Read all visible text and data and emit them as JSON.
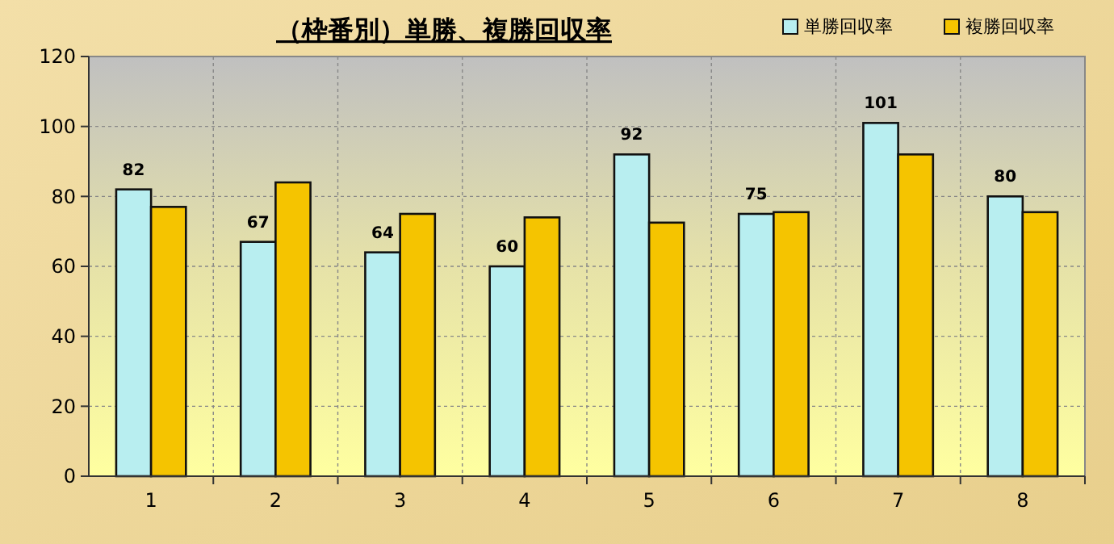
{
  "chart_data": {
    "type": "bar",
    "title": "（枠番別）単勝、複勝回収率",
    "categories": [
      "1",
      "2",
      "3",
      "4",
      "5",
      "6",
      "7",
      "8"
    ],
    "series": [
      {
        "name": "単勝回収率",
        "color": "#b8eef0",
        "values": [
          82,
          67,
          64,
          60,
          92,
          75,
          101,
          80
        ],
        "value_labels": [
          "82",
          "67",
          "64",
          "60",
          "92",
          "75",
          "101",
          "80"
        ]
      },
      {
        "name": "複勝回収率",
        "color": "#f5c400",
        "values": [
          77,
          84,
          75,
          74,
          72.5,
          75.5,
          92,
          75.5
        ]
      }
    ],
    "ylim": [
      0,
      120
    ],
    "yticks": [
      0,
      20,
      40,
      60,
      80,
      100,
      120
    ],
    "grid": true,
    "legend": "top right"
  }
}
